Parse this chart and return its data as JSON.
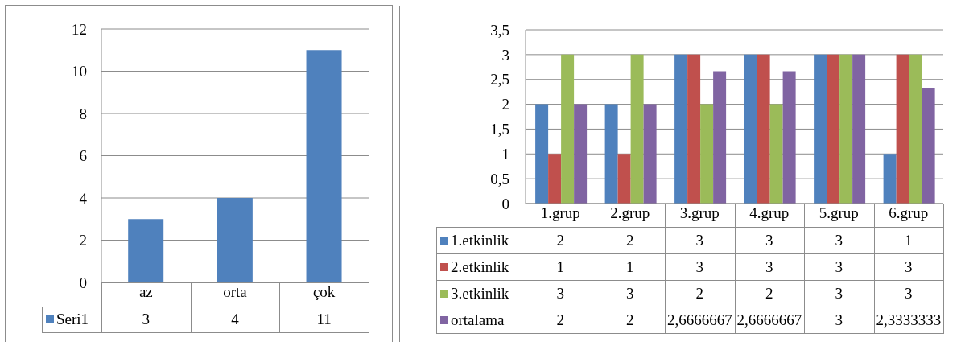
{
  "chart_data": [
    {
      "type": "bar",
      "categories": [
        "az",
        "orta",
        "çok"
      ],
      "series": [
        {
          "name": "Seri1",
          "color": "#4f81bd",
          "values": [
            3,
            4,
            11
          ]
        }
      ],
      "ylim": [
        0,
        12
      ],
      "yticks": [
        0,
        2,
        4,
        6,
        8,
        10,
        12
      ],
      "grid": "y",
      "legend": "bottom",
      "data_labels": true
    },
    {
      "type": "bar",
      "categories": [
        "1.grup",
        "2.grup",
        "3.grup",
        "4.grup",
        "5.grup",
        "6.grup"
      ],
      "series": [
        {
          "name": "1.etkinlik",
          "color": "#4f81bd",
          "values": [
            2,
            2,
            3,
            3,
            3,
            1
          ],
          "value_labels": [
            "2",
            "2",
            "3",
            "3",
            "3",
            "1"
          ]
        },
        {
          "name": "2.etkinlik",
          "color": "#c0504d",
          "values": [
            1,
            1,
            3,
            3,
            3,
            3
          ],
          "value_labels": [
            "1",
            "1",
            "3",
            "3",
            "3",
            "3"
          ]
        },
        {
          "name": "3.etkinlik",
          "color": "#9bbb59",
          "values": [
            3,
            3,
            2,
            2,
            3,
            3
          ],
          "value_labels": [
            "3",
            "3",
            "2",
            "2",
            "3",
            "3"
          ]
        },
        {
          "name": "ortalama",
          "color": "#8064a2",
          "values": [
            2,
            2,
            2.6666667,
            2.6666667,
            3,
            2.3333333
          ],
          "value_labels": [
            "2",
            "2",
            "2,6666667",
            "2,6666667",
            "3",
            "2,3333333"
          ]
        }
      ],
      "ylim": [
        0,
        3.5
      ],
      "yticks": [
        0,
        {
          "value": 0.5,
          "label": "0,5"
        },
        1,
        {
          "value": 1.5,
          "label": "1,5"
        },
        2,
        {
          "value": 2.5,
          "label": "2,5"
        },
        3,
        {
          "value": 3.5,
          "label": "3,5"
        }
      ],
      "grid": "y",
      "legend": "bottom"
    }
  ]
}
